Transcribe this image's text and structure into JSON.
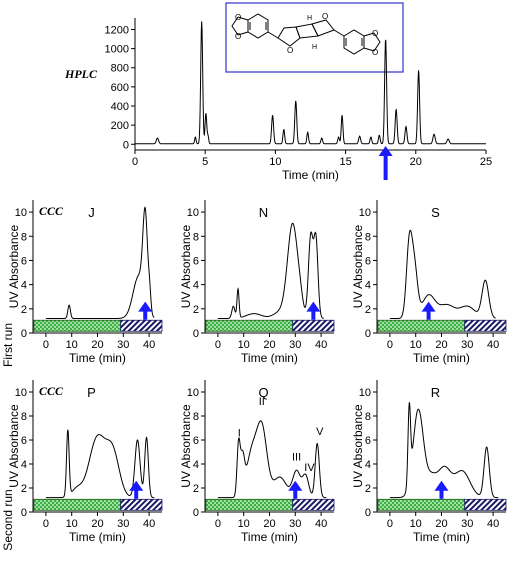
{
  "figure": {
    "hplc_label": "HPLC",
    "ccc_label": "CCC",
    "row1_label": "First run",
    "row2_label": "Second run"
  },
  "colors": {
    "arrow": "#1a1aff",
    "stationary_fill": "#3cb043",
    "mobile_fill": "#1a1a66",
    "structure_box": "#3333cc",
    "oxygen_red": "#dd0000"
  },
  "chart_data": [
    {
      "id": "hplc",
      "type": "line",
      "label": "HPLC",
      "xlabel": "Time (min)",
      "ylabel": "",
      "xlim": [
        0,
        25
      ],
      "ylim": [
        -60,
        1320
      ],
      "xticks": [
        0,
        5,
        10,
        15,
        20,
        25
      ],
      "yticks": [
        0,
        200,
        400,
        600,
        800,
        1000,
        1200
      ],
      "grid": false,
      "baseline": 5,
      "peaks": [
        [
          1.6,
          60,
          0.08
        ],
        [
          4.3,
          70,
          0.05
        ],
        [
          4.75,
          1280,
          0.07
        ],
        [
          5.05,
          320,
          0.06
        ],
        [
          5.2,
          80,
          0.05
        ],
        [
          9.8,
          300,
          0.07
        ],
        [
          10.6,
          150,
          0.06
        ],
        [
          11.45,
          450,
          0.07
        ],
        [
          12.3,
          120,
          0.06
        ],
        [
          13.3,
          60,
          0.06
        ],
        [
          14.5,
          70,
          0.06
        ],
        [
          14.75,
          300,
          0.06
        ],
        [
          16.0,
          80,
          0.07
        ],
        [
          16.8,
          70,
          0.06
        ],
        [
          17.4,
          90,
          0.06
        ],
        [
          17.85,
          1100,
          0.07
        ],
        [
          18.6,
          360,
          0.07
        ],
        [
          19.3,
          180,
          0.07
        ],
        [
          20.2,
          770,
          0.07
        ],
        [
          21.3,
          100,
          0.08
        ],
        [
          22.3,
          50,
          0.08
        ]
      ],
      "arrow_at_x": 17.85
    },
    {
      "id": "J",
      "type": "line",
      "title": "J",
      "label": "CCC",
      "xlabel": "Time (min)",
      "ylabel": "UV Absorbance",
      "xlim": [
        -5,
        45
      ],
      "ylim": [
        0,
        11
      ],
      "xticks": [
        0,
        10,
        20,
        30,
        40
      ],
      "yticks": [
        0,
        2,
        4,
        6,
        8,
        10
      ],
      "baseline": 1.2,
      "peaks": [
        [
          9,
          1.1,
          0.5
        ],
        [
          36,
          3.5,
          2.2
        ],
        [
          38.5,
          7.3,
          0.9
        ],
        [
          40.2,
          1.5,
          0.5
        ]
      ],
      "x_end": 42,
      "arrow_at_x": 38.5,
      "segment_split_x": 29
    },
    {
      "id": "N",
      "type": "line",
      "title": "N",
      "xlabel": "Time (min)",
      "ylabel": "UV Absorbance",
      "xlim": [
        -5,
        45
      ],
      "ylim": [
        0,
        11
      ],
      "xticks": [
        0,
        10,
        20,
        30,
        40
      ],
      "yticks": [
        0,
        2,
        4,
        6,
        8,
        10
      ],
      "baseline": 1.2,
      "peaks": [
        [
          6,
          1.0,
          0.6
        ],
        [
          7.8,
          2.4,
          0.4
        ],
        [
          14,
          0.4,
          3.0
        ],
        [
          24,
          0.5,
          2.5
        ],
        [
          29,
          7.8,
          2.0
        ],
        [
          32,
          0.7,
          1.0
        ],
        [
          36,
          6.8,
          0.9
        ],
        [
          38,
          6.4,
          0.8
        ]
      ],
      "x_end": 41,
      "arrow_at_x": 37,
      "segment_split_x": 29
    },
    {
      "id": "S",
      "type": "line",
      "title": "S",
      "xlabel": "Time (min)",
      "ylabel": "UV Absorbance",
      "xlim": [
        -5,
        45
      ],
      "ylim": [
        0,
        11
      ],
      "xticks": [
        0,
        10,
        20,
        30,
        40
      ],
      "yticks": [
        0,
        2,
        4,
        6,
        8,
        10
      ],
      "baseline": 1.2,
      "peaks": [
        [
          7.5,
          6.0,
          1.1
        ],
        [
          9.5,
          4.0,
          1.2
        ],
        [
          15,
          1.9,
          2.5
        ],
        [
          22,
          1.1,
          3.0
        ],
        [
          30,
          1.0,
          3.0
        ],
        [
          37,
          3.1,
          1.3
        ]
      ],
      "x_end": 41,
      "arrow_at_x": 15,
      "segment_split_x": 29
    },
    {
      "id": "P",
      "type": "line",
      "title": "P",
      "label": "CCC",
      "xlabel": "Time (min)",
      "ylabel": "UV Absorbance",
      "xlim": [
        -5,
        45
      ],
      "ylim": [
        0,
        11
      ],
      "xticks": [
        0,
        10,
        20,
        30,
        40
      ],
      "yticks": [
        0,
        2,
        4,
        6,
        8,
        10
      ],
      "baseline": 1.2,
      "peaks": [
        [
          8.5,
          5.5,
          0.5
        ],
        [
          12,
          0.7,
          2.0
        ],
        [
          20,
          5.0,
          3.2
        ],
        [
          26,
          3.5,
          2.5
        ],
        [
          35.5,
          4.8,
          1.0
        ],
        [
          39,
          5.0,
          0.7
        ]
      ],
      "x_end": 42,
      "arrow_at_x": 35,
      "segment_split_x": 29
    },
    {
      "id": "Q",
      "type": "line",
      "title": "Q",
      "xlabel": "Time (min)",
      "ylabel": "UV Absorbance",
      "xlim": [
        -5,
        45
      ],
      "ylim": [
        0,
        11
      ],
      "xticks": [
        0,
        10,
        20,
        30,
        40
      ],
      "yticks": [
        0,
        2,
        4,
        6,
        8,
        10
      ],
      "baseline": 1.2,
      "peaks": [
        [
          8,
          4.2,
          0.6
        ],
        [
          9.5,
          3.0,
          0.8
        ],
        [
          13,
          3.5,
          2.0
        ],
        [
          17,
          5.8,
          2.0
        ],
        [
          24,
          1.7,
          2.5
        ],
        [
          30.5,
          2.2,
          1.5
        ],
        [
          34,
          1.8,
          1.2
        ],
        [
          38.5,
          4.5,
          0.8
        ]
      ],
      "x_end": 42,
      "arrow_at_x": 30,
      "segment_split_x": 29,
      "peak_labels": [
        {
          "text": "I",
          "x": 8.3,
          "y": 6.3
        },
        {
          "text": "II",
          "x": 17,
          "y": 8.9
        },
        {
          "text": "III",
          "x": 30.5,
          "y": 4.3
        },
        {
          "text": "IV",
          "x": 35.5,
          "y": 3.4
        },
        {
          "text": "V",
          "x": 39.5,
          "y": 6.4
        }
      ]
    },
    {
      "id": "R",
      "type": "line",
      "title": "R",
      "xlabel": "Time (min)",
      "ylabel": "UV Absorbance",
      "xlim": [
        -5,
        45
      ],
      "ylim": [
        0,
        11
      ],
      "xticks": [
        0,
        10,
        20,
        30,
        40
      ],
      "yticks": [
        0,
        2,
        4,
        6,
        8,
        10
      ],
      "baseline": 1.2,
      "peaks": [
        [
          7.5,
          6.3,
          0.5
        ],
        [
          11,
          7.3,
          2.0
        ],
        [
          16,
          1.5,
          2.0
        ],
        [
          21,
          2.4,
          2.5
        ],
        [
          28,
          2.2,
          3.0
        ],
        [
          37.5,
          4.2,
          1.0
        ]
      ],
      "x_end": 42,
      "arrow_at_x": 20,
      "segment_split_x": 29
    }
  ]
}
